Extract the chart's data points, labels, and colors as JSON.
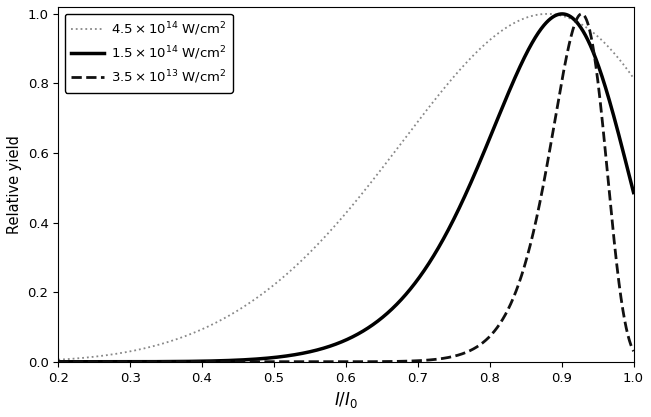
{
  "title": "",
  "xlabel": "$I/I_0$",
  "ylabel": "Relative yield",
  "xlim": [
    0.2,
    1.0
  ],
  "ylim": [
    0.0,
    1.02
  ],
  "xticks": [
    0.2,
    0.3,
    0.4,
    0.5,
    0.6,
    0.7,
    0.8,
    0.9,
    1.0
  ],
  "yticks": [
    0.0,
    0.2,
    0.4,
    0.6,
    0.8,
    1.0
  ],
  "curves": [
    {
      "label": "$4.5 \\times 10^{14}$ W/cm$^2$",
      "linestyle": ":",
      "color": "#888888",
      "linewidth": 1.3,
      "n_power": 5,
      "Isat": 0.88
    },
    {
      "label": "$1.5 \\times 10^{14}$ W/cm$^2$",
      "linestyle": "-",
      "color": "#000000",
      "linewidth": 2.5,
      "n_power": 10,
      "Isat": 0.9
    },
    {
      "label": "$3.5 \\times 10^{13}$ W/cm$^2$",
      "linestyle": "--",
      "color": "#111111",
      "linewidth": 2.0,
      "n_power": 20,
      "Isat": 0.915
    }
  ],
  "figsize": [
    6.51,
    4.17
  ],
  "dpi": 100,
  "background_color": "#ffffff",
  "legend_loc": "upper left",
  "legend_fontsize": 9.5
}
